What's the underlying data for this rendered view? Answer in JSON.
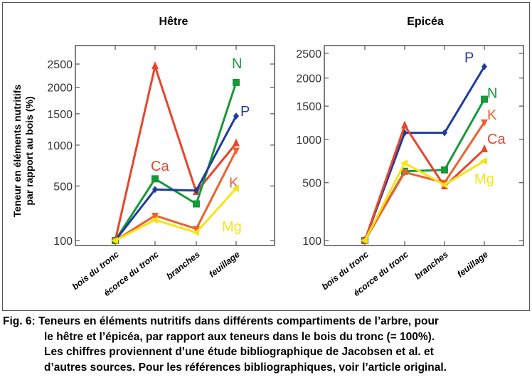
{
  "ylabel": [
    "Teneur en éléments nutritifs",
    "par rapport au bois (%)"
  ],
  "chart_data": [
    {
      "type": "line",
      "title": "Hêtre",
      "y_scale": "sqrt",
      "ylim": [
        85,
        3000
      ],
      "yticks": [
        100,
        500,
        1000,
        1500,
        2000,
        2500
      ],
      "categories": [
        "bois du tronc",
        "écorce du tronc",
        "branches",
        "feuillage"
      ],
      "series": [
        {
          "name": "Ca",
          "color": "#e8452c",
          "marker": "triangle-up",
          "values": [
            100,
            2450,
            440,
            1025
          ]
        },
        {
          "name": "N",
          "color": "#17993b",
          "marker": "square",
          "values": [
            100,
            575,
            335,
            2100
          ]
        },
        {
          "name": "P",
          "color": "#1f3c9c",
          "marker": "diamond",
          "values": [
            100,
            465,
            455,
            1460
          ]
        },
        {
          "name": "K",
          "color": "#ec6132",
          "marker": "triangle-down",
          "values": [
            100,
            245,
            160,
            925
          ]
        },
        {
          "name": "Mg",
          "color": "#f7e414",
          "marker": "triangle-left",
          "values": [
            100,
            215,
            140,
            475
          ]
        }
      ]
    },
    {
      "type": "line",
      "title": "Epicéa",
      "y_scale": "sqrt",
      "ylim": [
        85,
        2750
      ],
      "yticks": [
        100,
        500,
        1000,
        1500,
        2000,
        2500
      ],
      "categories": [
        "bois du tronc",
        "écorce du tronc",
        "branches",
        "feuillage"
      ],
      "series": [
        {
          "name": "P",
          "color": "#1f3c9c",
          "marker": "diamond",
          "values": [
            100,
            1090,
            1090,
            2225
          ]
        },
        {
          "name": "N",
          "color": "#17993b",
          "marker": "square",
          "values": [
            100,
            615,
            630,
            1615
          ]
        },
        {
          "name": "K",
          "color": "#ec6132",
          "marker": "triangle-down",
          "values": [
            100,
            605,
            500,
            1245
          ]
        },
        {
          "name": "Ca",
          "color": "#e8452c",
          "marker": "triangle-up",
          "values": [
            100,
            1195,
            465,
            870
          ]
        },
        {
          "name": "Mg",
          "color": "#f7e414",
          "marker": "triangle-left",
          "values": [
            100,
            705,
            480,
            730
          ]
        }
      ]
    }
  ],
  "caption": [
    "Fig. 6: Teneurs en éléments nutritifs dans différents compartiments de l’arbre, pour",
    "le hêtre et l’épicéa, par rapport aux teneurs dans le bois du tronc (= 100%).",
    "Les chiffres proviennent d’une étude bibliographique de Jacobsen et al. et",
    "d’autres sources.  Pour les références bibliographiques, voir l’article original."
  ]
}
